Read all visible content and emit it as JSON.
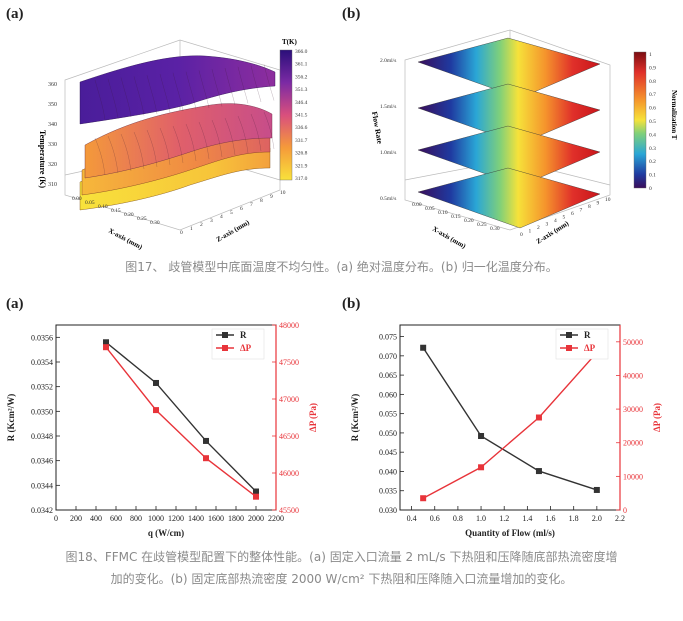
{
  "fig17": {
    "panel_a": "(a)",
    "panel_b": "(b)",
    "caption": "图17、 歧管模型中底面温度不均匀性。(a) 绝对温度分布。(b) 归一化温度分布。",
    "a": {
      "zlabel": "Temperature (K)",
      "xlabel": "X-axis (mm)",
      "ylabel": "Z-axis (mm)",
      "zticks": [
        "360",
        "350",
        "340",
        "330",
        "320",
        "310"
      ],
      "xticks": [
        "0.00",
        "0.05",
        "0.10",
        "0.15",
        "0.20",
        "0.25",
        "0.30"
      ],
      "yticks": [
        "0",
        "1",
        "2",
        "3",
        "4",
        "5",
        "6",
        "7",
        "8",
        "9",
        "10"
      ],
      "colorbar_title": "T(K)",
      "colorbar_ticks": [
        "366.0",
        "361.1",
        "356.2",
        "351.3",
        "346.4",
        "341.5",
        "336.6",
        "331.7",
        "326.8",
        "321.9",
        "317.0"
      ]
    },
    "b": {
      "zlabel": "Flow Rate",
      "zticks": [
        "2.0ml/s",
        "1.5ml/s",
        "1.0ml/s",
        "0.5ml/s"
      ],
      "xlabel": "X-axis (mm)",
      "ylabel": "Z-axis (mm)",
      "xticks": [
        "0.00",
        "0.05",
        "0.10",
        "0.15",
        "0.20",
        "0.25",
        "0.30"
      ],
      "yticks": [
        "0",
        "1",
        "2",
        "3",
        "4",
        "5",
        "6",
        "7",
        "8",
        "9",
        "10"
      ],
      "colorbar_title": "Normalization T",
      "colorbar_ticks": [
        "1",
        "0.9",
        "0.8",
        "0.7",
        "0.6",
        "0.5",
        "0.4",
        "0.3",
        "0.2",
        "0.1",
        "0"
      ]
    }
  },
  "fig18": {
    "panel_a": "(a)",
    "panel_b": "(b)",
    "caption_line1": "图18、FFMC 在歧管模型配置下的整体性能。(a) 固定入口流量 2 mL/s 下热阻和压降随底部热流密度增",
    "caption_line2": "加的变化。(b) 固定底部热流密度 2000 W/cm² 下热阻和压降随入口流量增加的变化。"
  },
  "chart_data": [
    {
      "type": "line",
      "xlabel": "q (W/cm)",
      "ylabel_left": "R (Kcm²/W)",
      "ylabel_right": "ΔP (Pa)",
      "x": [
        500,
        1000,
        1500,
        2000
      ],
      "xlim": [
        0,
        2200
      ],
      "xticks": [
        0,
        200,
        400,
        600,
        800,
        1000,
        1200,
        1400,
        1600,
        1800,
        2000,
        2200
      ],
      "ylim_left": [
        0.0342,
        0.0357
      ],
      "yticks_left": [
        "0.0342",
        "0.0344",
        "0.0346",
        "0.0348",
        "0.0350",
        "0.0352",
        "0.0354",
        "0.0356"
      ],
      "ylim_right": [
        45500,
        48000
      ],
      "yticks_right": [
        45500,
        46000,
        46500,
        47000,
        47500,
        48000
      ],
      "legend_position": "top-right",
      "series": [
        {
          "name": "R",
          "axis": "left",
          "color": "#333333",
          "values": [
            0.03556,
            0.03523,
            0.03476,
            0.03435
          ]
        },
        {
          "name": "ΔP",
          "axis": "right",
          "color": "#e8343a",
          "values": [
            47700,
            46850,
            46200,
            45680
          ]
        }
      ]
    },
    {
      "type": "line",
      "xlabel": "Quantity of Flow (ml/s)",
      "ylabel_left": "R (Kcm²/W)",
      "ylabel_right": "ΔP (Pa)",
      "x": [
        0.5,
        1.0,
        1.5,
        2.0
      ],
      "xlim": [
        0.3,
        2.2
      ],
      "xticks": [
        "0.4",
        "0.6",
        "0.8",
        "1.0",
        "1.2",
        "1.4",
        "1.6",
        "1.8",
        "2.0",
        "2.2"
      ],
      "ylim_left": [
        0.03,
        0.078
      ],
      "yticks_left": [
        "0.030",
        "0.035",
        "0.040",
        "0.045",
        "0.050",
        "0.055",
        "0.060",
        "0.065",
        "0.070",
        "0.075"
      ],
      "ylim_right": [
        0,
        55000
      ],
      "yticks_right": [
        0,
        10000,
        20000,
        30000,
        40000,
        50000
      ],
      "legend_position": "top-right",
      "series": [
        {
          "name": "R",
          "axis": "left",
          "color": "#333333",
          "values": [
            0.0721,
            0.0492,
            0.0401,
            0.0352
          ]
        },
        {
          "name": "ΔP",
          "axis": "right",
          "color": "#e8343a",
          "values": [
            3500,
            12700,
            27500,
            46800
          ]
        }
      ]
    }
  ]
}
